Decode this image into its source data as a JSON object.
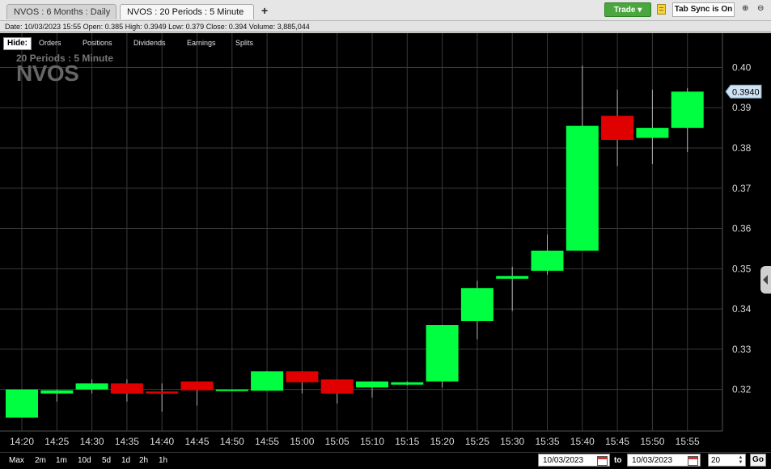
{
  "tabs": [
    {
      "label": "NVOS : 6 Months : Daily",
      "active": false
    },
    {
      "label": "NVOS : 20  Periods : 5 Minute",
      "active": true
    }
  ],
  "toolbar": {
    "add_tab_symbol": "+",
    "trade_label": "Trade ▾",
    "tab_sync_label": "Tab Sync is On",
    "zoom_in_symbol": "⊕",
    "zoom_out_symbol": "⊖"
  },
  "info": {
    "text": "Date: 10/03/2023 15:55   Open: 0.385   High: 0.3949   Low: 0.379   Close: 0.394   Volume: 3,885,044"
  },
  "hide_bar": {
    "hide_label": "Hide:",
    "items": [
      "Orders",
      "Positions",
      "Dividends",
      "Earnings",
      "Splits"
    ]
  },
  "watermark": {
    "period": "20  Periods : 5 Minute",
    "symbol": "NVOS"
  },
  "colors": {
    "up": "#00ff41",
    "down": "#e00000",
    "grid": "#3a3a3a",
    "background": "#000000",
    "last_price_label_bg": "#cfe3f5"
  },
  "chart_data": {
    "type": "candlestick",
    "title": "",
    "x_tick_labels": [
      "14:20",
      "14:25",
      "14:30",
      "14:35",
      "14:40",
      "14:45",
      "14:50",
      "14:55",
      "15:00",
      "15:05",
      "15:10",
      "15:15",
      "15:20",
      "15:25",
      "15:30",
      "15:35",
      "15:40",
      "15:45",
      "15:50",
      "15:55"
    ],
    "y_tick_labels": [
      "0.32",
      "0.33",
      "0.34",
      "0.35",
      "0.36",
      "0.37",
      "0.38",
      "0.39",
      "0.40"
    ],
    "ylim": [
      0.3125,
      0.4025
    ],
    "last_price_label": "0.3940",
    "candles": [
      {
        "time": "14:20",
        "open": 0.313,
        "high": 0.32,
        "low": 0.313,
        "close": 0.32
      },
      {
        "time": "14:25",
        "open": 0.319,
        "high": 0.32,
        "low": 0.317,
        "close": 0.3198
      },
      {
        "time": "14:30",
        "open": 0.32,
        "high": 0.3225,
        "low": 0.319,
        "close": 0.3215
      },
      {
        "time": "14:35",
        "open": 0.3215,
        "high": 0.3225,
        "low": 0.317,
        "close": 0.319
      },
      {
        "time": "14:40",
        "open": 0.3195,
        "high": 0.3215,
        "low": 0.3145,
        "close": 0.319
      },
      {
        "time": "14:45",
        "open": 0.322,
        "high": 0.322,
        "low": 0.316,
        "close": 0.3198
      },
      {
        "time": "14:50",
        "open": 0.3198,
        "high": 0.32,
        "low": 0.3196,
        "close": 0.32
      },
      {
        "time": "14:55",
        "open": 0.3197,
        "high": 0.3245,
        "low": 0.3197,
        "close": 0.3245
      },
      {
        "time": "15:00",
        "open": 0.3245,
        "high": 0.3245,
        "low": 0.319,
        "close": 0.3218
      },
      {
        "time": "15:05",
        "open": 0.3225,
        "high": 0.3225,
        "low": 0.3165,
        "close": 0.319
      },
      {
        "time": "15:10",
        "open": 0.3205,
        "high": 0.322,
        "low": 0.318,
        "close": 0.322
      },
      {
        "time": "15:15",
        "open": 0.3212,
        "high": 0.322,
        "low": 0.321,
        "close": 0.3218
      },
      {
        "time": "15:20",
        "open": 0.322,
        "high": 0.336,
        "low": 0.3205,
        "close": 0.336
      },
      {
        "time": "15:25",
        "open": 0.337,
        "high": 0.347,
        "low": 0.3325,
        "close": 0.3452
      },
      {
        "time": "15:30",
        "open": 0.3475,
        "high": 0.3505,
        "low": 0.3395,
        "close": 0.3482
      },
      {
        "time": "15:35",
        "open": 0.3495,
        "high": 0.3585,
        "low": 0.3485,
        "close": 0.3545
      },
      {
        "time": "15:40",
        "open": 0.3545,
        "high": 0.4005,
        "low": 0.3545,
        "close": 0.3855
      },
      {
        "time": "15:45",
        "open": 0.388,
        "high": 0.3945,
        "low": 0.3755,
        "close": 0.382
      },
      {
        "time": "15:50",
        "open": 0.3825,
        "high": 0.3945,
        "low": 0.376,
        "close": 0.385
      },
      {
        "time": "15:55",
        "open": 0.385,
        "high": 0.3949,
        "low": 0.379,
        "close": 0.394
      }
    ]
  },
  "bottom": {
    "ranges": [
      "Max",
      "2m",
      "1m",
      "10d",
      "5d",
      "1d",
      "2h",
      "1h"
    ],
    "date_from": "10/03/2023",
    "to_label": "to",
    "date_to": "10/03/2023",
    "periods_value": "20",
    "spin_up": "▲",
    "spin_down": "▼",
    "go_label": "Go"
  }
}
